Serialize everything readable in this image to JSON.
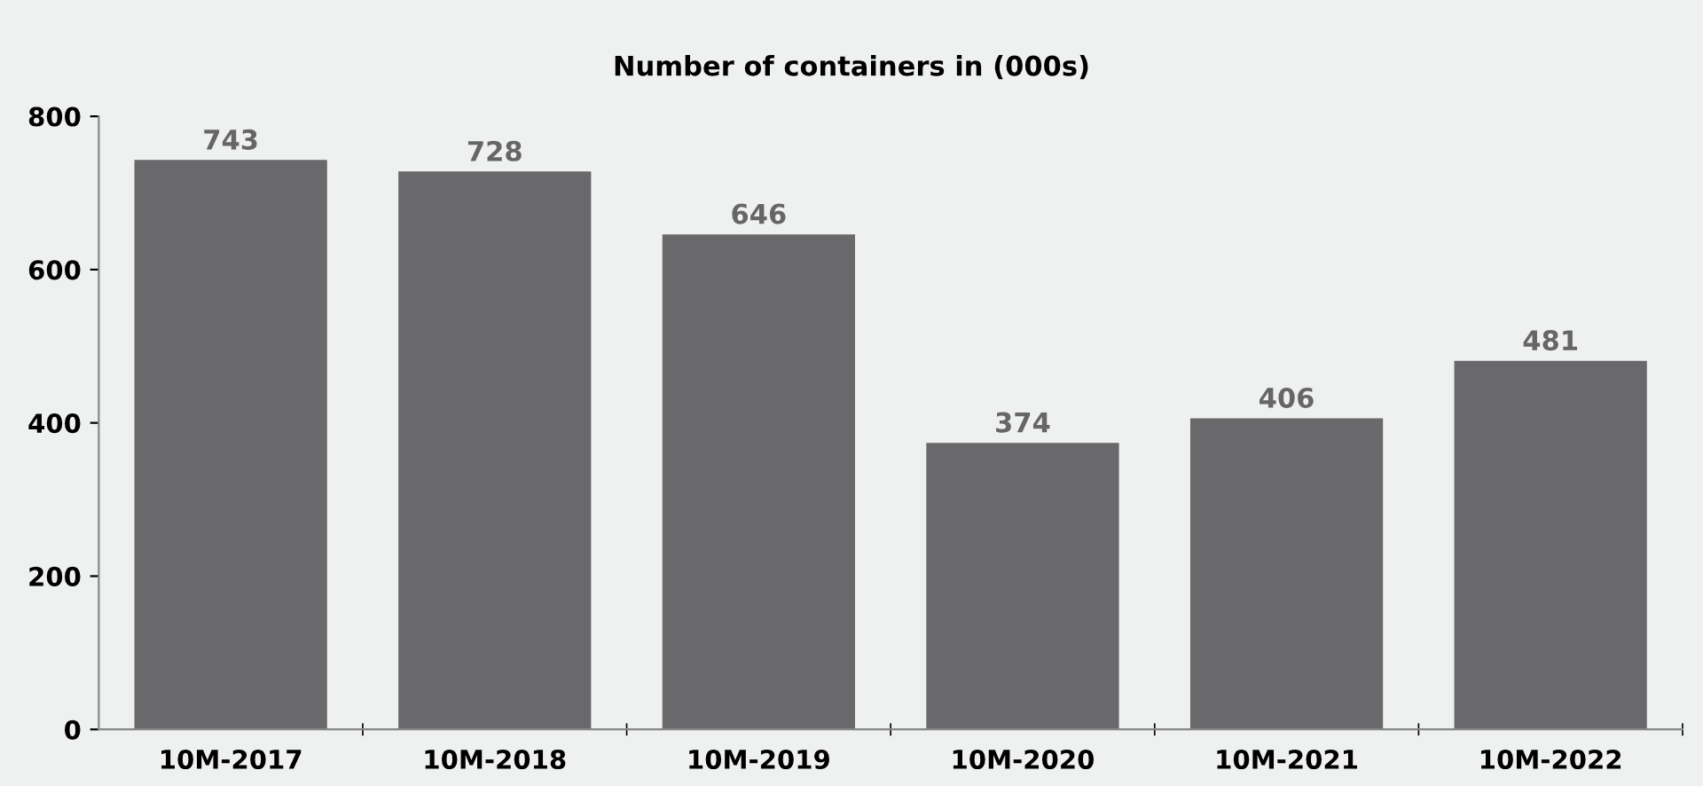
{
  "chart_data": {
    "type": "bar",
    "title": "Number of containers in (000s)",
    "categories": [
      "10M-2017",
      "10M-2018",
      "10M-2019",
      "10M-2020",
      "10M-2021",
      "10M-2022"
    ],
    "values": [
      743,
      728,
      646,
      374,
      406,
      481
    ],
    "color": "#69696b",
    "ylim": [
      0,
      800
    ],
    "yticks": [
      0,
      200,
      400,
      600,
      800
    ],
    "data_labels": true,
    "grid": false
  }
}
